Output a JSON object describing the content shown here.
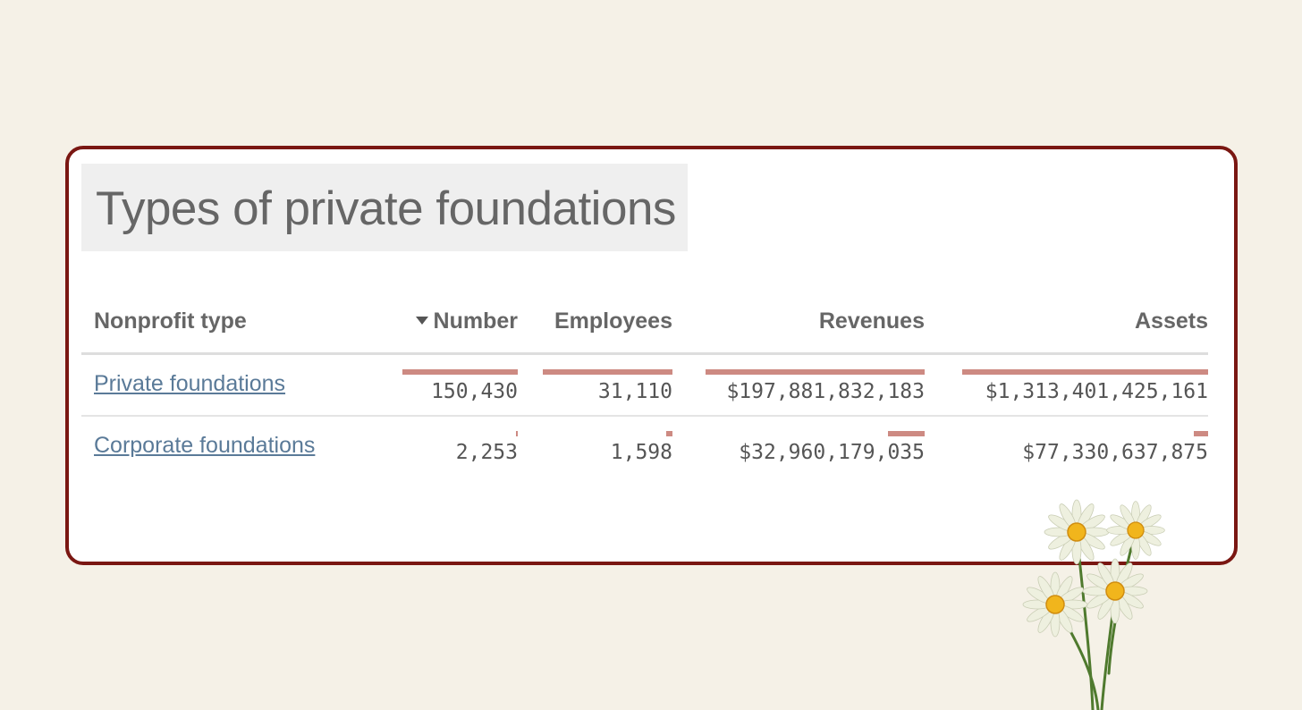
{
  "title": "Types of private foundations",
  "colors": {
    "background": "#f5f1e7",
    "card_border": "#7a1712",
    "bar": "#cd8a82",
    "link": "#5a7a98"
  },
  "table": {
    "headers": {
      "type": "Nonprofit type",
      "number": "Number",
      "employees": "Employees",
      "revenues": "Revenues",
      "assets": "Assets"
    },
    "sort": {
      "column": "Number",
      "direction": "descending",
      "icon": "sort-down-caret-icon"
    },
    "rows": [
      {
        "type": "Private foundations",
        "number": "150,430",
        "employees": "31,110",
        "revenues": "$197,881,832,183",
        "assets": "$1,313,401,425,161",
        "fractions": {
          "number": 1.0,
          "employees": 1.0,
          "revenues": 1.0,
          "assets": 1.0
        }
      },
      {
        "type": "Corporate foundations",
        "number": "2,253",
        "employees": "1,598",
        "revenues": "$32,960,179,035",
        "assets": "$77,330,637,875",
        "fractions": {
          "number": 0.015,
          "employees": 0.051,
          "revenues": 0.167,
          "assets": 0.059
        }
      }
    ]
  },
  "decoration": {
    "icon": "daisy-flowers-illustration"
  }
}
